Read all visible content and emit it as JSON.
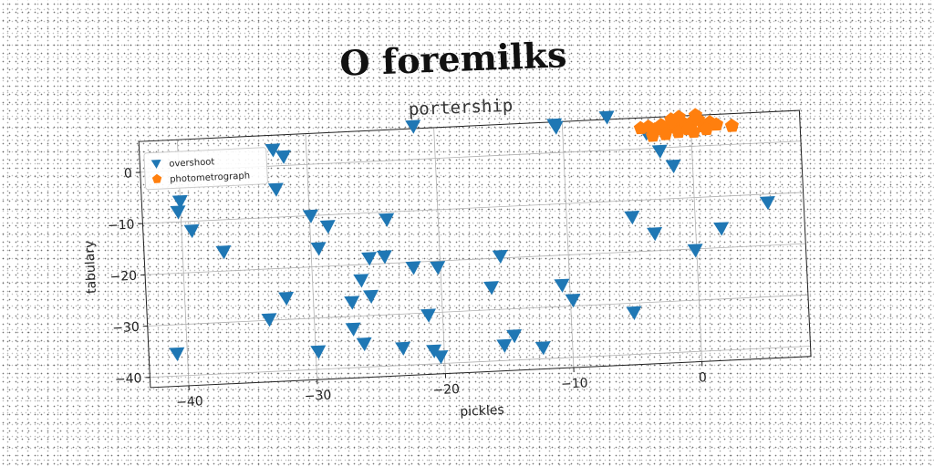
{
  "title": "O foremilks",
  "subtitle": "portership",
  "chart_data": {
    "type": "scatter",
    "xlabel": "pickles",
    "ylabel": "tabulary",
    "xlim": [
      -43,
      8.5
    ],
    "ylim": [
      -42,
      6
    ],
    "xticks": [
      -40,
      -30,
      -20,
      -10,
      0
    ],
    "yticks": [
      0,
      -10,
      -20,
      -30,
      -40
    ],
    "grid": true,
    "legend_position": "top-left",
    "series": [
      {
        "name": "overshoot",
        "color": "#1f77b4",
        "marker": "triangle-down",
        "points": [
          [
            -21.6,
            6.5
          ],
          [
            -10.6,
            5.5
          ],
          [
            -10.5,
            5.0
          ],
          [
            -6.5,
            6.5
          ],
          [
            -32.6,
            3.2
          ],
          [
            -31.8,
            1.8
          ],
          [
            -40.0,
            -6.0
          ],
          [
            -40.2,
            -8.0
          ],
          [
            -39.2,
            -11.8
          ],
          [
            -36.8,
            -16.2
          ],
          [
            -32.5,
            -4.5
          ],
          [
            -29.9,
            -10.0
          ],
          [
            -28.6,
            -12.2
          ],
          [
            -29.4,
            -16.4
          ],
          [
            -24.0,
            -11.4
          ],
          [
            -22.1,
            -21.0
          ],
          [
            -20.2,
            -21.2
          ],
          [
            -25.5,
            -18.8
          ],
          [
            -24.3,
            -18.6
          ],
          [
            -26.2,
            -23.0
          ],
          [
            -25.5,
            -26.2
          ],
          [
            -27.0,
            -27.2
          ],
          [
            -32.1,
            -25.8
          ],
          [
            -33.5,
            -29.8
          ],
          [
            -27.0,
            -32.4
          ],
          [
            -26.2,
            -35.4
          ],
          [
            -29.8,
            -36.5
          ],
          [
            -23.2,
            -36.6
          ],
          [
            -21.1,
            -30.4
          ],
          [
            -20.8,
            -37.4
          ],
          [
            -20.3,
            -38.6
          ],
          [
            -15.3,
            -19.6
          ],
          [
            -16.1,
            -25.6
          ],
          [
            -15.3,
            -37.0
          ],
          [
            -14.5,
            -35.2
          ],
          [
            -12.3,
            -37.8
          ],
          [
            -10.6,
            -25.8
          ],
          [
            -9.8,
            -28.8
          ],
          [
            -4.9,
            -13.2
          ],
          [
            -5.1,
            -31.8
          ],
          [
            -3.2,
            -16.6
          ],
          [
            -0.1,
            -20.2
          ],
          [
            2.0,
            -16.2
          ],
          [
            5.7,
            -11.6
          ],
          [
            -3.5,
            3.0
          ],
          [
            -2.5,
            -0.6
          ],
          [
            -1.5,
            -3.6
          ],
          [
            -40.8,
            -35.6
          ]
        ]
      },
      {
        "name": "photometrograph",
        "color": "#ff7f0e",
        "marker": "pentagon",
        "points": [
          [
            -3.9,
            4.0
          ],
          [
            -3.3,
            4.2
          ],
          [
            -2.8,
            3.6
          ],
          [
            -2.3,
            4.4
          ],
          [
            -1.8,
            3.9
          ],
          [
            -1.3,
            4.6
          ],
          [
            -0.8,
            5.0
          ],
          [
            -0.4,
            4.1
          ],
          [
            0.1,
            4.7
          ],
          [
            0.6,
            5.1
          ],
          [
            1.0,
            3.8
          ],
          [
            1.5,
            4.5
          ],
          [
            -2.0,
            2.6
          ],
          [
            -1.0,
            2.9
          ],
          [
            0.2,
            2.8
          ],
          [
            -3.0,
            2.4
          ],
          [
            -0.2,
            3.4
          ],
          [
            1.2,
            3.2
          ],
          [
            2.0,
            4.0
          ],
          [
            3.2,
            3.6
          ],
          [
            -1.5,
            5.4
          ],
          [
            0.4,
            6.0
          ],
          [
            -0.9,
            5.8
          ]
        ]
      }
    ]
  }
}
